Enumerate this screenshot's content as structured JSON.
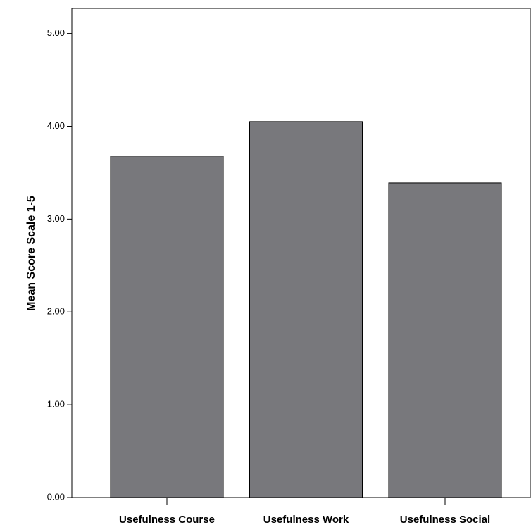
{
  "chart_data": {
    "type": "bar",
    "y_label": "Mean Score Scale 1-5",
    "categories": [
      "Usefulness Course",
      "Usefulness Work",
      "Usefulness Social"
    ],
    "values": [
      3.68,
      4.05,
      3.39
    ],
    "color": "#78787c",
    "ylim": [
      0,
      5.27
    ],
    "yticks": [
      {
        "value": 0,
        "label": "0.00"
      },
      {
        "value": 1,
        "label": "1.00"
      },
      {
        "value": 2,
        "label": "2.00"
      },
      {
        "value": 3,
        "label": "3.00"
      },
      {
        "value": 4,
        "label": "4.00"
      },
      {
        "value": 5,
        "label": "5.00"
      }
    ],
    "grid": false
  }
}
